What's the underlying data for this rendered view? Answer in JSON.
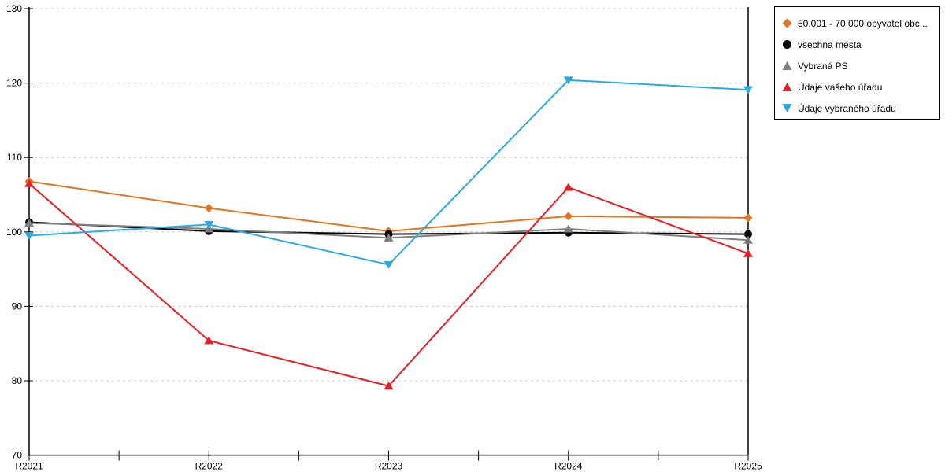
{
  "chart_data": {
    "type": "line",
    "title": "",
    "xlabel": "",
    "ylabel": "",
    "categories": [
      "R2021",
      "R2022",
      "R2023",
      "R2024",
      "R2025"
    ],
    "series": [
      {
        "name": "50.001 - 70.000 obyvatel obc...",
        "color": "#E2751D",
        "marker": "diamond",
        "values": [
          106.8,
          103.2,
          100.1,
          102.1,
          101.9
        ]
      },
      {
        "name": "všechna města",
        "color": "#000000",
        "marker": "circle",
        "values": [
          101.3,
          100.1,
          99.7,
          99.9,
          99.7
        ]
      },
      {
        "name": "Vybraná PS",
        "color": "#7F7F7F",
        "marker": "triangle-up",
        "values": [
          101.2,
          100.4,
          99.2,
          100.4,
          98.9
        ]
      },
      {
        "name": "Údaje vašeho úřadu",
        "color": "#ED1C24",
        "marker": "triangle-up",
        "values": [
          106.5,
          85.4,
          79.3,
          106.0,
          97.1
        ]
      },
      {
        "name": "Údaje vybraného úřadu",
        "color": "#29ABE2",
        "marker": "triangle-down",
        "values": [
          99.5,
          101.0,
          95.6,
          120.4,
          119.1
        ]
      }
    ],
    "ylim": [
      70,
      130
    ],
    "ytick_step": 10,
    "ytick_labels": [
      "70",
      "80",
      "90",
      "100",
      "110",
      "120",
      "130"
    ],
    "grid": true,
    "gridline_color": "#C9C9C9",
    "axis_color": "#000000",
    "legend_position": "outside-top-right"
  }
}
